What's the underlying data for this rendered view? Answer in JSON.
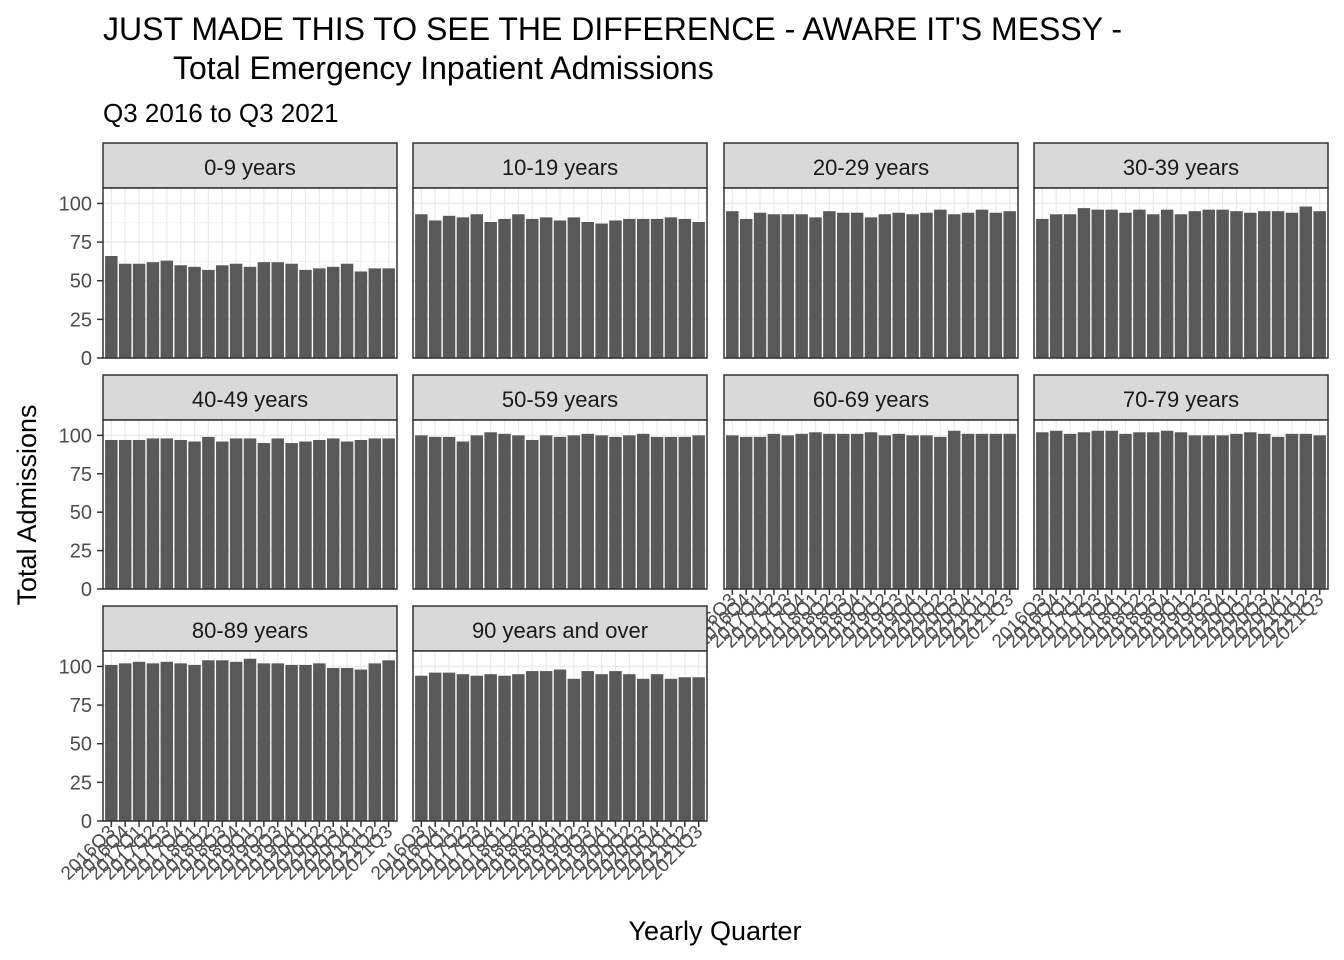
{
  "chart_data": {
    "type": "bar",
    "title_lines": [
      "JUST MADE THIS TO SEE THE DIFFERENCE - AWARE IT'S MESSY -",
      "Total Emergency Inpatient Admissions"
    ],
    "subtitle": "Q3 2016 to Q3 2021",
    "xlabel": "Yearly Quarter",
    "ylabel": "Total Admissions",
    "ylim": [
      0,
      110
    ],
    "yticks": [
      0,
      25,
      50,
      75,
      100
    ],
    "grid": true,
    "bar_color": "#595959",
    "categories": [
      "2016Q3",
      "2016Q4",
      "2017Q1",
      "2017Q2",
      "2017Q3",
      "2017Q4",
      "2018Q1",
      "2018Q2",
      "2018Q3",
      "2018Q4",
      "2019Q1",
      "2019Q2",
      "2019Q3",
      "2019Q4",
      "2020Q1",
      "2020Q2",
      "2020Q3",
      "2020Q4",
      "2021Q1",
      "2021Q2",
      "2021Q3"
    ],
    "panels": [
      {
        "name": "0-9 years",
        "values": [
          66,
          61,
          61,
          62,
          63,
          60,
          59,
          57,
          60,
          61,
          59,
          62,
          62,
          61,
          57,
          58,
          59,
          61,
          56,
          58,
          58
        ]
      },
      {
        "name": "10-19 years",
        "values": [
          93,
          89,
          92,
          91,
          93,
          88,
          90,
          93,
          90,
          91,
          89,
          91,
          88,
          87,
          89,
          90,
          90,
          90,
          91,
          90,
          88
        ]
      },
      {
        "name": "20-29 years",
        "values": [
          95,
          90,
          94,
          93,
          93,
          93,
          91,
          95,
          94,
          94,
          91,
          93,
          94,
          93,
          94,
          96,
          93,
          94,
          96,
          94,
          95
        ]
      },
      {
        "name": "30-39 years",
        "values": [
          90,
          93,
          93,
          97,
          96,
          96,
          94,
          96,
          93,
          96,
          93,
          95,
          96,
          96,
          95,
          94,
          95,
          95,
          94,
          98,
          95
        ]
      },
      {
        "name": "40-49 years",
        "values": [
          97,
          97,
          97,
          98,
          98,
          97,
          96,
          99,
          96,
          98,
          98,
          95,
          98,
          95,
          96,
          97,
          98,
          96,
          97,
          98,
          98
        ]
      },
      {
        "name": "50-59 years",
        "values": [
          100,
          99,
          99,
          96,
          100,
          102,
          101,
          100,
          97,
          100,
          99,
          100,
          101,
          100,
          99,
          100,
          101,
          99,
          99,
          99,
          100
        ]
      },
      {
        "name": "60-69 years",
        "values": [
          100,
          99,
          99,
          101,
          100,
          101,
          102,
          101,
          101,
          101,
          102,
          100,
          101,
          100,
          100,
          99,
          103,
          101,
          101,
          101,
          101
        ]
      },
      {
        "name": "70-79 years",
        "values": [
          102,
          103,
          101,
          102,
          103,
          103,
          101,
          102,
          102,
          103,
          102,
          100,
          100,
          100,
          101,
          102,
          101,
          99,
          101,
          101,
          100
        ]
      },
      {
        "name": "80-89 years",
        "values": [
          101,
          102,
          103,
          102,
          103,
          102,
          101,
          104,
          104,
          103,
          105,
          102,
          102,
          101,
          101,
          102,
          99,
          99,
          98,
          102,
          104
        ]
      },
      {
        "name": "90 years and over",
        "values": [
          94,
          96,
          96,
          95,
          94,
          95,
          94,
          95,
          97,
          97,
          98,
          92,
          97,
          95,
          97,
          95,
          92,
          95,
          92,
          93,
          93
        ]
      }
    ]
  }
}
